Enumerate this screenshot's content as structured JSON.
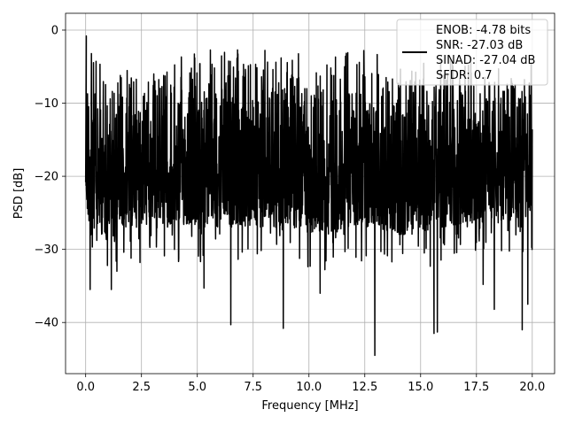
{
  "chart_data": {
    "type": "line",
    "title": "",
    "xlabel": "Frequency [MHz]",
    "ylabel": "PSD [dB]",
    "xlim": [
      -0.9,
      21.0
    ],
    "ylim": [
      -47.0,
      2.3
    ],
    "x_ticks": [
      0.0,
      2.5,
      5.0,
      7.5,
      10.0,
      12.5,
      15.0,
      17.5,
      20.0
    ],
    "x_tick_labels": [
      "0.0",
      "2.5",
      "5.0",
      "7.5",
      "10.0",
      "12.5",
      "15.0",
      "17.5",
      "20.0"
    ],
    "y_ticks": [
      0,
      -10,
      -20,
      -30,
      -40
    ],
    "y_tick_labels": [
      "0",
      "−10",
      "−20",
      "−30",
      "−40"
    ],
    "grid": true,
    "legend": {
      "placement": "upper-right",
      "entries": [
        "ENOB: -4.78 bits",
        "SNR: -27.03 dB",
        "SINAD: -27.04 dB",
        "SFDR: 0.7"
      ]
    },
    "series": [
      {
        "color": "#000000",
        "x_start": 0.0,
        "x_end": 20.0,
        "band_upper": {
          "x": [
            0,
            1,
            2,
            3,
            4,
            5,
            6,
            7,
            8,
            9,
            10,
            11,
            12,
            13,
            14,
            15,
            16,
            17,
            18,
            19,
            20
          ],
          "y": [
            -1,
            -4,
            -4,
            -4,
            -3,
            -2,
            -2,
            -2,
            -2,
            -2,
            -2,
            -2,
            -2,
            -2,
            -2,
            -2,
            -3,
            -3,
            -4,
            -3,
            -3
          ]
        },
        "band_lower": {
          "x": [
            0,
            1,
            2,
            3,
            4,
            5,
            6,
            7,
            8,
            9,
            10,
            11,
            12,
            13,
            14,
            15,
            16,
            17,
            18,
            19,
            20
          ],
          "y": [
            -26,
            -29,
            -27,
            -27,
            -27,
            -27,
            -27,
            -27,
            -27,
            -27,
            -28,
            -28,
            -27,
            -27,
            -28,
            -28,
            -27,
            -27,
            -26,
            -26,
            -25
          ]
        },
        "deep_nulls": [
          {
            "x": 0.2,
            "y": -35.5
          },
          {
            "x": 1.15,
            "y": -35.5
          },
          {
            "x": 1.4,
            "y": -33.0
          },
          {
            "x": 5.3,
            "y": -35.3
          },
          {
            "x": 6.5,
            "y": -40.3
          },
          {
            "x": 8.85,
            "y": -40.8
          },
          {
            "x": 10.5,
            "y": -36.0
          },
          {
            "x": 12.95,
            "y": -44.5
          },
          {
            "x": 15.6,
            "y": -41.5
          },
          {
            "x": 15.75,
            "y": -41.3
          },
          {
            "x": 17.8,
            "y": -34.8
          },
          {
            "x": 18.3,
            "y": -38.2
          },
          {
            "x": 19.55,
            "y": -41.0
          },
          {
            "x": 19.8,
            "y": -37.5
          }
        ],
        "peak": {
          "x": 0.03,
          "y": -0.8
        }
      }
    ]
  }
}
